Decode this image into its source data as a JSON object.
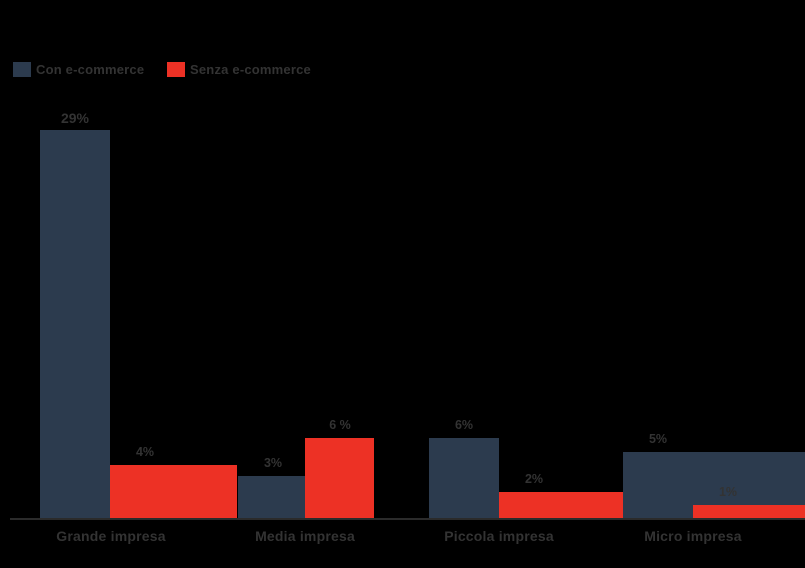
{
  "chart_data": {
    "type": "bar",
    "title": "",
    "categories": [
      "Grande impresa",
      "Media impresa",
      "Piccola impresa",
      "Micro impresa"
    ],
    "series": [
      {
        "name": "Con e-commerce",
        "color": "#2c3b4e",
        "values": [
          29,
          3,
          6,
          5
        ],
        "display_values": [
          "29%",
          "3%",
          "6%",
          "5%"
        ]
      },
      {
        "name": "Senza e-commerce",
        "color": "#ed3125",
        "values": [
          4,
          6,
          2,
          1
        ],
        "display_values": [
          "4%",
          "6 %",
          "2%",
          "1%"
        ]
      }
    ],
    "value_unit": "%",
    "ylim": [
      0,
      29
    ],
    "grid": false,
    "legend_position": "top-left",
    "background_color": "#000000",
    "text_color": "#333333",
    "axis_color": "#2b2b2b"
  },
  "legend": {
    "items": [
      {
        "label": "Con e-commerce"
      },
      {
        "label": "Senza e-commerce"
      }
    ]
  }
}
